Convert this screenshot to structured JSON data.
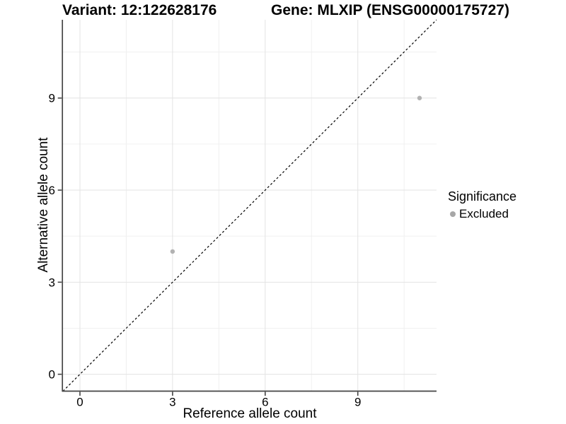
{
  "chart_data": {
    "type": "scatter",
    "title_left": "Variant: 12:122628176",
    "title_right": "Gene: MLXIP (ENSG00000175727)",
    "xlabel": "Reference allele count",
    "ylabel": "Alternative allele count",
    "xlim": [
      -0.55,
      11.55
    ],
    "ylim": [
      -0.55,
      11.55
    ],
    "x_ticks": [
      0,
      3,
      6,
      9
    ],
    "y_ticks": [
      0,
      3,
      6,
      9
    ],
    "x_minor_ticks": [
      1.5,
      4.5,
      7.5,
      10.5
    ],
    "y_minor_ticks": [
      1.5,
      4.5,
      7.5,
      10.5
    ],
    "grid": true,
    "legend_position": "right",
    "identity_line": {
      "style": "dashed",
      "color": "#000000",
      "from": -0.55,
      "to": 11.55
    },
    "series": [
      {
        "name": "Excluded",
        "color": "#b2b2b2",
        "marker": "circle",
        "points": [
          {
            "x": 3,
            "y": 4
          },
          {
            "x": 11,
            "y": 9
          }
        ]
      }
    ],
    "legend": {
      "title": "Significance",
      "items": [
        {
          "label": "Excluded",
          "color": "#a7a7a7",
          "marker": "circle"
        }
      ]
    },
    "colors": {
      "background": "#ffffff",
      "axis": "#444444",
      "grid_major": "#e3e3e3",
      "grid_minor": "#f0f0f0",
      "text": "#000000"
    }
  }
}
